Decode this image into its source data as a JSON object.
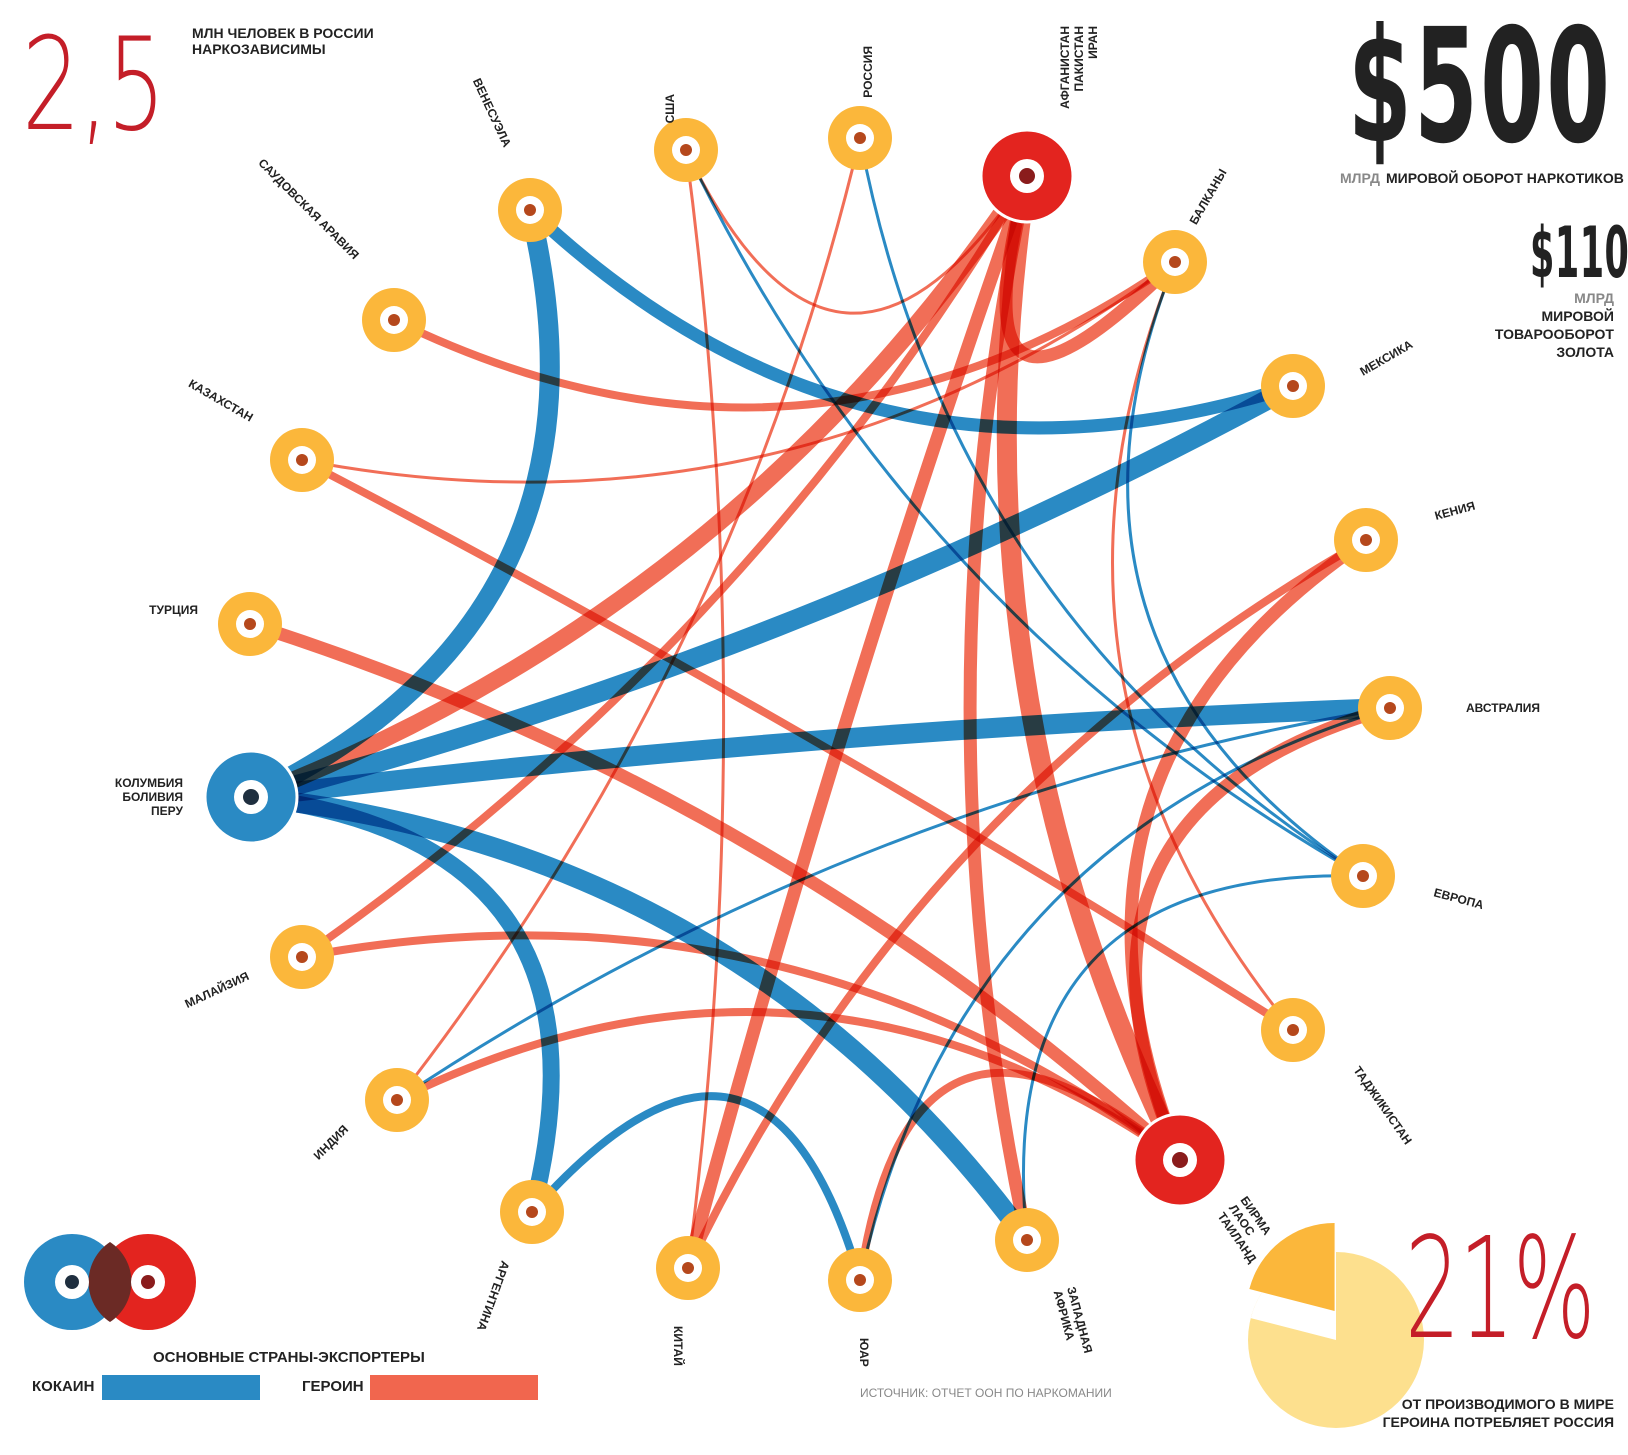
{
  "stat_left": {
    "value": "2,5",
    "caption_line1": "МЛН ЧЕЛОВЕК В РОССИИ",
    "caption_line2": "НАРКОЗАВИСИМЫ"
  },
  "stat_right": {
    "value": "$500",
    "unit": "МЛРД",
    "caption": "МИРОВОЙ ОБОРОТ НАРКОТИКОВ"
  },
  "stat_gold": {
    "value": "$110",
    "unit": "МЛРД",
    "caption_line1": "МИРОВОЙ",
    "caption_line2": "ТОВАРООБОРОТ",
    "caption_line3": "ЗОЛОТА"
  },
  "stat_pct": {
    "value": "21%",
    "fraction": 0.21,
    "caption_line1": "ОТ ПРОИЗВОДИМОГО В МИРЕ",
    "caption_line2": "ГЕРОИНА ПОТРЕБЛЯЕТ РОССИЯ"
  },
  "legend": {
    "exporters_label": "ОСНОВНЫЕ СТРАНЫ-ЭКСПОРТЕРЫ",
    "cocaine_label": "КОКАИН",
    "heroin_label": "ГЕРОИН"
  },
  "source": "ИСТОЧНИК: ОТЧЕТ ООН ПО НАРКОМАНИИ",
  "colors": {
    "cocaine": "#2a8ac4",
    "heroin": "#f1664e",
    "heroin_hub": "#e3241f",
    "node": "#fbb73b",
    "title_red": "#c41e28",
    "dark": "#222222"
  },
  "nodes": [
    {
      "id": "usa",
      "label": [
        "США"
      ]
    },
    {
      "id": "russia",
      "label": [
        "РОССИЯ"
      ]
    },
    {
      "id": "afg",
      "label": [
        "АФГАНИСТАН",
        "ПАКИСТАН",
        "ИРАН"
      ],
      "hub": "heroin"
    },
    {
      "id": "balkans",
      "label": [
        "БАЛКАНЫ"
      ]
    },
    {
      "id": "mexico",
      "label": [
        "МЕКСИКА"
      ]
    },
    {
      "id": "kenya",
      "label": [
        "КЕНИЯ"
      ]
    },
    {
      "id": "australia",
      "label": [
        "АВСТРАЛИЯ"
      ]
    },
    {
      "id": "europe",
      "label": [
        "ЕВРОПА"
      ]
    },
    {
      "id": "tajik",
      "label": [
        "ТАДЖИКИСТАН"
      ]
    },
    {
      "id": "burma",
      "label": [
        "БИРМА",
        "ЛАОС",
        "ТАИЛАНД"
      ],
      "hub": "heroin"
    },
    {
      "id": "wafrica",
      "label": [
        "ЗАПАДНАЯ",
        "АФРИКА"
      ]
    },
    {
      "id": "sa",
      "label": [
        "ЮАР"
      ]
    },
    {
      "id": "china",
      "label": [
        "КИТАЙ"
      ]
    },
    {
      "id": "argentina",
      "label": [
        "АРГЕНТИНА"
      ]
    },
    {
      "id": "india",
      "label": [
        "ИНДИЯ"
      ]
    },
    {
      "id": "malaysia",
      "label": [
        "МАЛАЙЗИЯ"
      ]
    },
    {
      "id": "colombia",
      "label": [
        "КОЛУМБИЯ",
        "БОЛИВИЯ",
        "ПЕРУ"
      ],
      "hub": "cocaine"
    },
    {
      "id": "turkey",
      "label": [
        "ТУРЦИЯ"
      ]
    },
    {
      "id": "kazakhstan",
      "label": [
        "КАЗАХСТАН"
      ]
    },
    {
      "id": "saudi",
      "label": [
        "САУДОВСКАЯ АРАВИЯ"
      ]
    },
    {
      "id": "venezuela",
      "label": [
        "ВЕНЕСУЭЛА"
      ]
    }
  ],
  "flows": [
    {
      "from": "colombia",
      "to": "venezuela",
      "drug": "cocaine",
      "weight": 5
    },
    {
      "from": "colombia",
      "to": "mexico",
      "drug": "cocaine",
      "weight": 5
    },
    {
      "from": "colombia",
      "to": "australia",
      "drug": "cocaine",
      "weight": 5
    },
    {
      "from": "colombia",
      "to": "wafrica",
      "drug": "cocaine",
      "weight": 5
    },
    {
      "from": "colombia",
      "to": "argentina",
      "drug": "cocaine",
      "weight": 4
    },
    {
      "from": "venezuela",
      "to": "mexico",
      "drug": "cocaine",
      "weight": 3
    },
    {
      "from": "usa",
      "to": "europe",
      "drug": "cocaine",
      "weight": 1
    },
    {
      "from": "russia",
      "to": "europe",
      "drug": "cocaine",
      "weight": 1
    },
    {
      "from": "balkans",
      "to": "europe",
      "drug": "cocaine",
      "weight": 1
    },
    {
      "from": "india",
      "to": "australia",
      "drug": "cocaine",
      "weight": 1
    },
    {
      "from": "argentina",
      "to": "sa",
      "drug": "cocaine",
      "weight": 2
    },
    {
      "from": "wafrica",
      "to": "europe",
      "drug": "cocaine",
      "weight": 1
    },
    {
      "from": "sa",
      "to": "australia",
      "drug": "cocaine",
      "weight": 1
    },
    {
      "from": "afg",
      "to": "colombia",
      "drug": "heroin",
      "weight": 4
    },
    {
      "from": "afg",
      "to": "malaysia",
      "drug": "heroin",
      "weight": 2
    },
    {
      "from": "afg",
      "to": "china",
      "drug": "heroin",
      "weight": 3
    },
    {
      "from": "afg",
      "to": "balkans",
      "drug": "heroin",
      "weight": 3
    },
    {
      "from": "afg",
      "to": "burma",
      "drug": "heroin",
      "weight": 5
    },
    {
      "from": "afg",
      "to": "wafrica",
      "drug": "heroin",
      "weight": 3
    },
    {
      "from": "afg",
      "to": "usa",
      "drug": "heroin",
      "weight": 1
    },
    {
      "from": "burma",
      "to": "turkey",
      "drug": "heroin",
      "weight": 3
    },
    {
      "from": "burma",
      "to": "kenya",
      "drug": "heroin",
      "weight": 3
    },
    {
      "from": "burma",
      "to": "australia",
      "drug": "heroin",
      "weight": 3
    },
    {
      "from": "burma",
      "to": "india",
      "drug": "heroin",
      "weight": 2
    },
    {
      "from": "burma",
      "to": "sa",
      "drug": "heroin",
      "weight": 2
    },
    {
      "from": "burma",
      "to": "malaysia",
      "drug": "heroin",
      "weight": 2
    },
    {
      "from": "balkans",
      "to": "saudi",
      "drug": "heroin",
      "weight": 2
    },
    {
      "from": "balkans",
      "to": "kazakhstan",
      "drug": "heroin",
      "weight": 1
    },
    {
      "from": "balkans",
      "to": "tajik",
      "drug": "heroin",
      "weight": 1
    },
    {
      "from": "kazakhstan",
      "to": "tajik",
      "drug": "heroin",
      "weight": 2
    },
    {
      "from": "russia",
      "to": "india",
      "drug": "heroin",
      "weight": 1
    },
    {
      "from": "usa",
      "to": "china",
      "drug": "heroin",
      "weight": 1
    },
    {
      "from": "kenya",
      "to": "china",
      "drug": "heroin",
      "weight": 2
    }
  ]
}
